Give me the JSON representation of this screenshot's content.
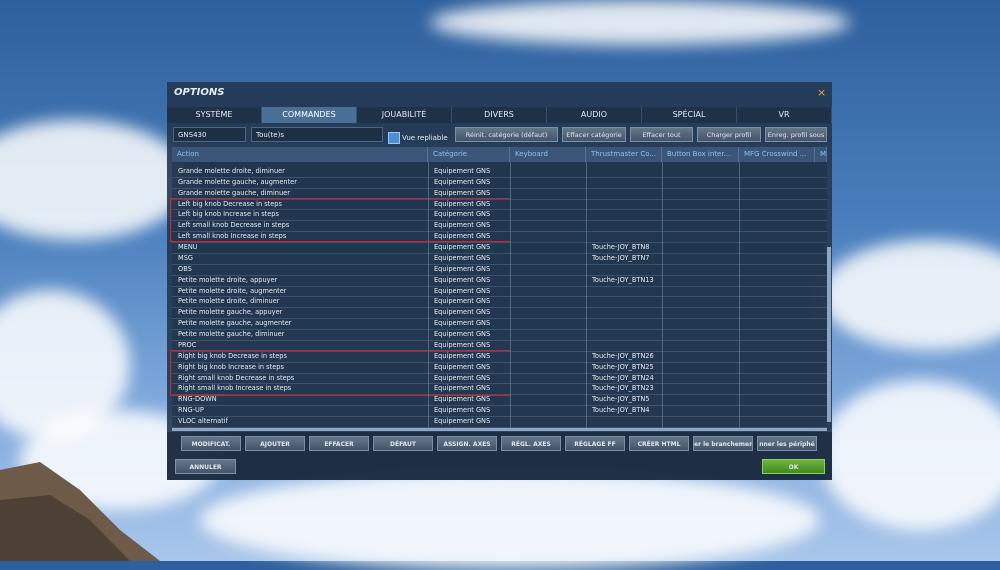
{
  "dialog": {
    "title": "OPTIONS",
    "close": "×",
    "tabs": [
      "SYSTÈME",
      "COMMANDES",
      "JOUABILITÉ",
      "DIVERS",
      "AUDIO",
      "SPÉCIAL",
      "VR"
    ],
    "active_tab": 1,
    "toolbar": {
      "aircraft": "GNS430",
      "filter": "Tou(te)s",
      "checkbox": "Vue repliable",
      "buttons": [
        "Réinit. catégorie (défaut)",
        "Effacer catégorie",
        "Effacer tout",
        "Charger profil",
        "Enreg. profil sous"
      ]
    },
    "table": {
      "columns": [
        "Action",
        "Catégorie",
        "Keyboard",
        "Thrustmaster Co...",
        "Button Box inter...",
        "MFG Crosswind ...",
        "M"
      ],
      "rows": [
        {
          "action": "Grande molette droite, diminuer",
          "category": "Equipement GNS"
        },
        {
          "action": "Grande molette gauche, augmenter",
          "category": "Equipement GNS"
        },
        {
          "action": "Grande molette gauche, diminuer",
          "category": "Equipement GNS"
        },
        {
          "action": "Left big knob Decrease in steps",
          "category": "Equipement GNS"
        },
        {
          "action": "Left big knob Increase in steps",
          "category": "Equipement GNS"
        },
        {
          "action": "Left small knob Decrease in steps",
          "category": "Equipement GNS"
        },
        {
          "action": "Left small knob Increase in steps",
          "category": "Equipement GNS"
        },
        {
          "action": "MENU",
          "category": "Equipement GNS",
          "joystick": "Touche-JOY_BTN8"
        },
        {
          "action": "MSG",
          "category": "Equipement GNS",
          "joystick": "Touche-JOY_BTN7"
        },
        {
          "action": "OBS",
          "category": "Equipement GNS"
        },
        {
          "action": "Petite molette droite, appuyer",
          "category": "Equipement GNS",
          "joystick": "Touche-JOY_BTN13"
        },
        {
          "action": "Petite molette droite, augmenter",
          "category": "Equipement GNS"
        },
        {
          "action": "Petite molette droite, diminuer",
          "category": "Equipement GNS"
        },
        {
          "action": "Petite molette gauche, appuyer",
          "category": "Equipement GNS"
        },
        {
          "action": "Petite molette gauche, augmenter",
          "category": "Equipement GNS"
        },
        {
          "action": "Petite molette gauche, diminuer",
          "category": "Equipement GNS"
        },
        {
          "action": "PROC",
          "category": "Equipement GNS"
        },
        {
          "action": "Right big knob Decrease in steps",
          "category": "Equipement GNS",
          "joystick": "Touche-JOY_BTN26"
        },
        {
          "action": "Right big knob Increase in steps",
          "category": "Equipement GNS",
          "joystick": "Touche-JOY_BTN25"
        },
        {
          "action": "Right small knob Decrease in steps",
          "category": "Equipement GNS",
          "joystick": "Touche-JOY_BTN24"
        },
        {
          "action": "Right small knob Increase in steps",
          "category": "Equipement GNS",
          "joystick": "Touche-JOY_BTN23"
        },
        {
          "action": "RNG-DOWN",
          "category": "Equipement GNS",
          "joystick": "Touche-JOY_BTN5"
        },
        {
          "action": "RNG-UP",
          "category": "Equipement GNS",
          "joystick": "Touche-JOY_BTN4"
        },
        {
          "action": "VLOC alternatif",
          "category": "Equipement GNS"
        }
      ]
    },
    "bottom_buttons": [
      "MODIFICAT.",
      "AJOUTER",
      "EFFACER",
      "DÉFAUT",
      "ASSIGN. AXES",
      "RÉGL. AXES",
      "RÉGLAGE FF",
      "CRÉER HTML",
      "er le branchement",
      "nner les périphé"
    ],
    "cancel": "ANNULER",
    "ok": "OK"
  }
}
